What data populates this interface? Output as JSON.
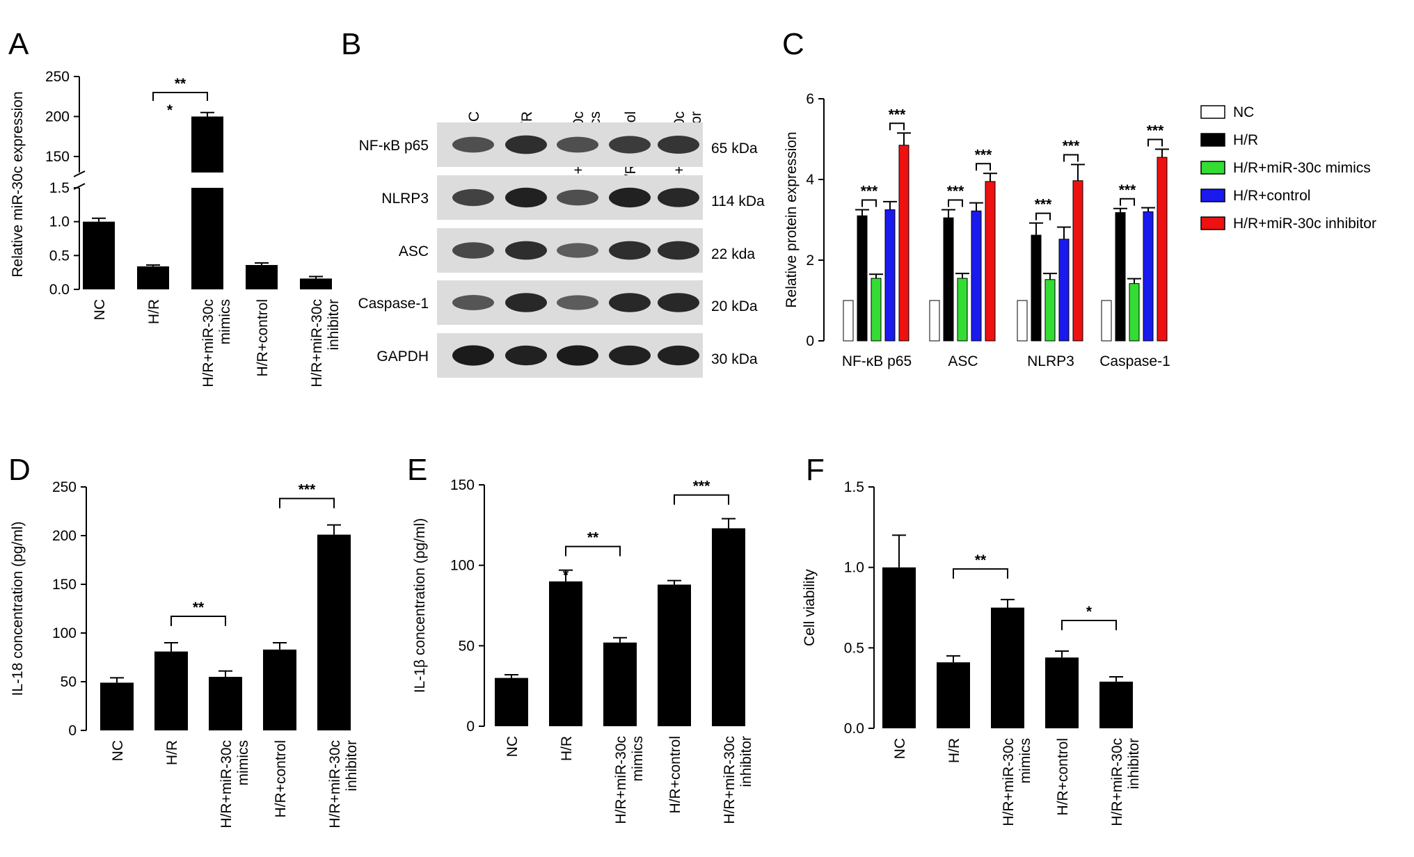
{
  "panel_labels": [
    "A",
    "B",
    "C",
    "D",
    "E",
    "F"
  ],
  "groups": [
    "NC",
    "H/R",
    "H/R+miR-30c mimics",
    "H/R+control",
    "H/R+miR-30c inhibitor"
  ],
  "legend": {
    "entries": [
      "NC",
      "H/R",
      "H/R+miR-30c mimics",
      "H/R+control",
      "H/R+miR-30c inhibitor"
    ],
    "colors": [
      "#ffffff",
      "#000000",
      "#33dd33",
      "#1a1aee",
      "#ee1111"
    ]
  },
  "western_blot": {
    "proteins": [
      "NF-κB p65",
      "NLRP3",
      "ASC",
      "Caspase-1",
      "GAPDH"
    ],
    "sizes": [
      "65 kDa",
      "114 kDa",
      "22 kda",
      "20 kDa",
      "30 kDa"
    ],
    "band_intensity": [
      [
        0.55,
        0.8,
        0.55,
        0.7,
        0.75
      ],
      [
        0.65,
        0.9,
        0.55,
        0.9,
        0.85
      ],
      [
        0.6,
        0.8,
        0.45,
        0.8,
        0.8
      ],
      [
        0.5,
        0.85,
        0.45,
        0.85,
        0.85
      ],
      [
        0.95,
        0.9,
        0.95,
        0.9,
        0.9
      ]
    ]
  },
  "chart_data": [
    {
      "panel": "A",
      "type": "bar",
      "categories": [
        "NC",
        "H/R",
        "H/R+miR-30c mimics",
        "H/R+control",
        "H/R+miR-30c inhibitor"
      ],
      "values": [
        1.0,
        0.34,
        200,
        0.36,
        0.16
      ],
      "errors": [
        0.05,
        0.02,
        5,
        0.03,
        0.03
      ],
      "ylabel": "Relative miR-30c expression",
      "axis_break": {
        "lower_range": [
          0,
          1.5
        ],
        "upper_range": [
          130,
          250
        ]
      },
      "yticks_lower": [
        "0.0",
        "0.5",
        "1.0",
        "1.5"
      ],
      "yticks_upper": [
        "150",
        "200",
        "250"
      ],
      "significance": [
        {
          "between": [
            1,
            2
          ],
          "label": "**"
        },
        {
          "above": 2,
          "label": "*"
        }
      ]
    },
    {
      "panel": "C",
      "type": "bar",
      "categories": [
        "NF-κB p65",
        "ASC",
        "NLRP3",
        "Caspase-1"
      ],
      "series": [
        {
          "name": "NC",
          "values": [
            1.0,
            1.0,
            1.0,
            1.0
          ],
          "errors": [
            0,
            0,
            0,
            0
          ]
        },
        {
          "name": "H/R",
          "values": [
            3.1,
            3.05,
            2.62,
            3.18
          ],
          "errors": [
            0.15,
            0.2,
            0.3,
            0.1
          ]
        },
        {
          "name": "H/R+miR-30c mimics",
          "values": [
            1.55,
            1.55,
            1.52,
            1.42
          ],
          "errors": [
            0.1,
            0.12,
            0.15,
            0.12
          ]
        },
        {
          "name": "H/R+control",
          "values": [
            3.25,
            3.22,
            2.52,
            3.2
          ],
          "errors": [
            0.2,
            0.2,
            0.3,
            0.1
          ]
        },
        {
          "name": "H/R+miR-30c inhibitor",
          "values": [
            4.85,
            3.95,
            3.97,
            4.55
          ],
          "errors": [
            0.3,
            0.2,
            0.4,
            0.2
          ]
        }
      ],
      "ylabel": "Relative protein expression",
      "ylim": [
        0,
        6
      ],
      "yticks": [
        "0",
        "2",
        "4",
        "6"
      ],
      "significance_label": "***"
    },
    {
      "panel": "D",
      "type": "bar",
      "categories": [
        "NC",
        "H/R",
        "H/R+miR-30c mimics",
        "H/R+control",
        "H/R+miR-30c inhibitor"
      ],
      "values": [
        49,
        81,
        55,
        83,
        201
      ],
      "errors": [
        5,
        9,
        6,
        7,
        10
      ],
      "ylabel": "IL-18 concentration (pg/ml)",
      "ylim": [
        0,
        250
      ],
      "yticks": [
        "0",
        "50",
        "100",
        "150",
        "200",
        "250"
      ],
      "significance": [
        {
          "between": [
            1,
            2
          ],
          "label": "**"
        },
        {
          "between": [
            3,
            4
          ],
          "label": "***"
        }
      ]
    },
    {
      "panel": "E",
      "type": "bar",
      "categories": [
        "NC",
        "H/R",
        "H/R+miR-30c mimics",
        "H/R+control",
        "H/R+miR-30c inhibitor"
      ],
      "values": [
        30,
        90,
        52,
        88,
        123
      ],
      "errors": [
        2,
        7,
        3,
        2.5,
        6
      ],
      "ylabel": "IL-1β concentration (pg/ml)",
      "ylim": [
        0,
        150
      ],
      "yticks": [
        "0",
        "50",
        "100",
        "150"
      ],
      "significance": [
        {
          "between": [
            1,
            2
          ],
          "label": "**"
        },
        {
          "above": 1,
          "label": "*"
        },
        {
          "between": [
            3,
            4
          ],
          "label": "***"
        }
      ]
    },
    {
      "panel": "F",
      "type": "bar",
      "categories": [
        "NC",
        "H/R",
        "H/R+miR-30c mimics",
        "H/R+control",
        "H/R+miR-30c inhibitor"
      ],
      "values": [
        1.0,
        0.41,
        0.75,
        0.44,
        0.29
      ],
      "errors": [
        0.2,
        0.04,
        0.05,
        0.04,
        0.03
      ],
      "ylabel": "Cell viability",
      "ylim": [
        0,
        1.5
      ],
      "yticks": [
        "0.0",
        "0.5",
        "1.0",
        "1.5"
      ],
      "significance": [
        {
          "between": [
            1,
            2
          ],
          "label": "**"
        },
        {
          "between": [
            3,
            4
          ],
          "label": "*"
        }
      ]
    }
  ]
}
